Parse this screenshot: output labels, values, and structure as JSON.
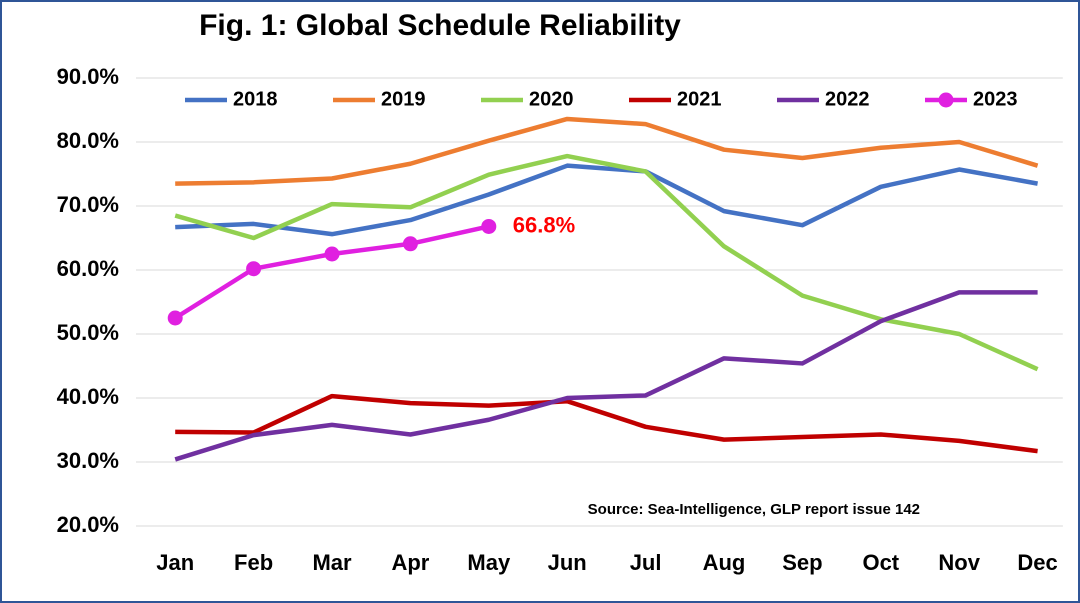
{
  "chart_data": {
    "type": "line",
    "title": "Fig. 1: Global Schedule Reliability",
    "annotation": "Source: Sea-Intelligence, GLP report issue 142",
    "categories": [
      "Jan",
      "Feb",
      "Mar",
      "Apr",
      "May",
      "Jun",
      "Jul",
      "Aug",
      "Sep",
      "Oct",
      "Nov",
      "Dec"
    ],
    "series": [
      {
        "name": "2018",
        "color": "#4472c4",
        "values": [
          66.7,
          67.2,
          65.6,
          67.8,
          71.8,
          76.3,
          75.4,
          69.2,
          67.0,
          73.0,
          75.7,
          73.5
        ]
      },
      {
        "name": "2019",
        "color": "#ed7d31",
        "values": [
          73.5,
          73.7,
          74.3,
          76.6,
          80.2,
          83.6,
          82.8,
          78.8,
          77.5,
          79.1,
          80.0,
          76.3
        ]
      },
      {
        "name": "2020",
        "color": "#92d050",
        "values": [
          68.5,
          65.0,
          70.3,
          69.8,
          74.9,
          77.8,
          75.4,
          63.7,
          56.0,
          52.3,
          50.0,
          44.5
        ]
      },
      {
        "name": "2021",
        "color": "#c00000",
        "values": [
          34.7,
          34.6,
          40.3,
          39.2,
          38.8,
          39.5,
          35.5,
          33.5,
          33.9,
          34.3,
          33.3,
          31.7
        ]
      },
      {
        "name": "2022",
        "color": "#7030a0",
        "values": [
          30.4,
          34.2,
          35.8,
          34.3,
          36.6,
          40.0,
          40.4,
          46.2,
          45.4,
          52.0,
          56.5,
          56.5
        ]
      },
      {
        "name": "2023",
        "color": "#e020e0",
        "marker": true,
        "values": [
          52.5,
          60.2,
          62.5,
          64.1,
          66.8,
          null,
          null,
          null,
          null,
          null,
          null,
          null
        ],
        "value_labels": [
          null,
          null,
          null,
          null,
          "66.8%",
          null,
          null,
          null,
          null,
          null,
          null,
          null
        ],
        "value_label_color": "#ff0000"
      }
    ],
    "ylim": [
      20,
      90
    ],
    "yticks": [
      {
        "value": 20,
        "label": "20.0%"
      },
      {
        "value": 30,
        "label": "30.0%"
      },
      {
        "value": 40,
        "label": "40.0%"
      },
      {
        "value": 50,
        "label": "50.0%"
      },
      {
        "value": 60,
        "label": "60.0%"
      },
      {
        "value": 70,
        "label": "70.0%"
      },
      {
        "value": 80,
        "label": "80.0%"
      },
      {
        "value": 90,
        "label": "90.0%"
      }
    ],
    "grid": true,
    "legend": "top"
  }
}
